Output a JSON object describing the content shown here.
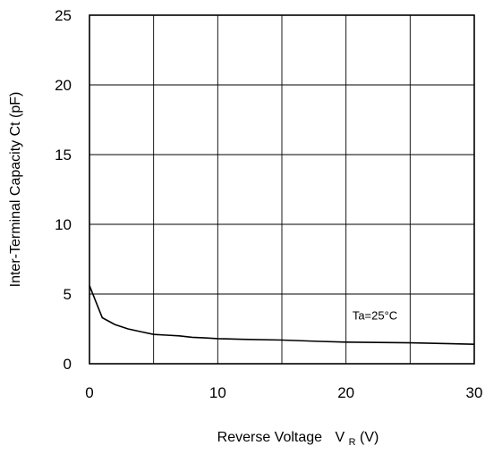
{
  "chart_data": {
    "type": "line",
    "title": "",
    "xlabel": "Reverse Voltage",
    "xlabel_symbol": "V",
    "xlabel_subscript": "R",
    "xlabel_unit": "(V)",
    "ylabel": "Inter-Terminal Capacity  Ct (pF)",
    "xlim": [
      0,
      30
    ],
    "ylim": [
      0,
      25
    ],
    "x_ticks": [
      0,
      10,
      20,
      30
    ],
    "y_ticks": [
      0,
      5,
      10,
      15,
      20,
      25
    ],
    "x_tick_labels": [
      "0",
      "10",
      "20",
      "30"
    ],
    "y_tick_labels": [
      "0",
      "5",
      "10",
      "15",
      "20",
      "25"
    ],
    "grid": true,
    "grid_x": [
      0,
      5,
      10,
      15,
      20,
      25,
      30
    ],
    "grid_y": [
      0,
      5,
      10,
      15,
      20,
      25
    ],
    "annotation": {
      "text": "Ta=25°C",
      "x": 20.5,
      "y": 3.5
    },
    "series": [
      {
        "x": [
          0,
          1,
          2,
          3,
          4,
          5,
          6,
          7,
          8,
          9,
          10,
          12,
          15,
          18,
          20,
          25,
          30
        ],
        "values": [
          5.6,
          3.3,
          2.8,
          2.5,
          2.3,
          2.1,
          2.05,
          2.0,
          1.9,
          1.85,
          1.8,
          1.75,
          1.7,
          1.6,
          1.55,
          1.5,
          1.4
        ],
        "color": "#000000"
      }
    ]
  }
}
